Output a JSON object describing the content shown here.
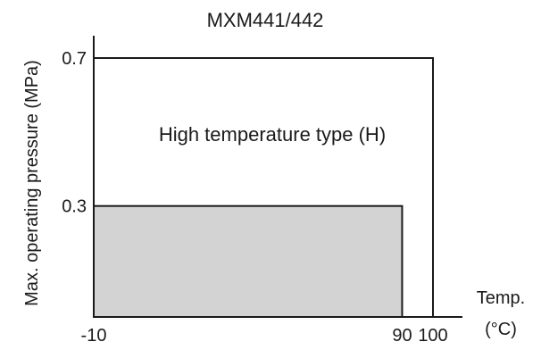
{
  "chart_data": {
    "type": "area",
    "title": "MXM441/442",
    "ylabel": "Max. operating pressure (MPa)",
    "xlabel": [
      "Temp.",
      "(°C)"
    ],
    "xlim": [
      -10,
      100
    ],
    "ylim": [
      0,
      0.7
    ],
    "x_tick_labels": [
      "-10",
      "90",
      "100"
    ],
    "y_tick_labels": [
      "0.7",
      "0.3"
    ],
    "grid": false,
    "regions": [
      {
        "name": "High temperature type (H)",
        "x": [
          -10,
          100
        ],
        "y": [
          0,
          0.7
        ],
        "fill": "#ffffff",
        "label_inside": true
      },
      {
        "name": "",
        "x": [
          -10,
          90
        ],
        "y": [
          0,
          0.3
        ],
        "fill": "#d3d3d3",
        "label_inside": false
      }
    ],
    "colors": {
      "shaded_region": "#d3d3d3",
      "outline": "#1a1a1a"
    }
  }
}
